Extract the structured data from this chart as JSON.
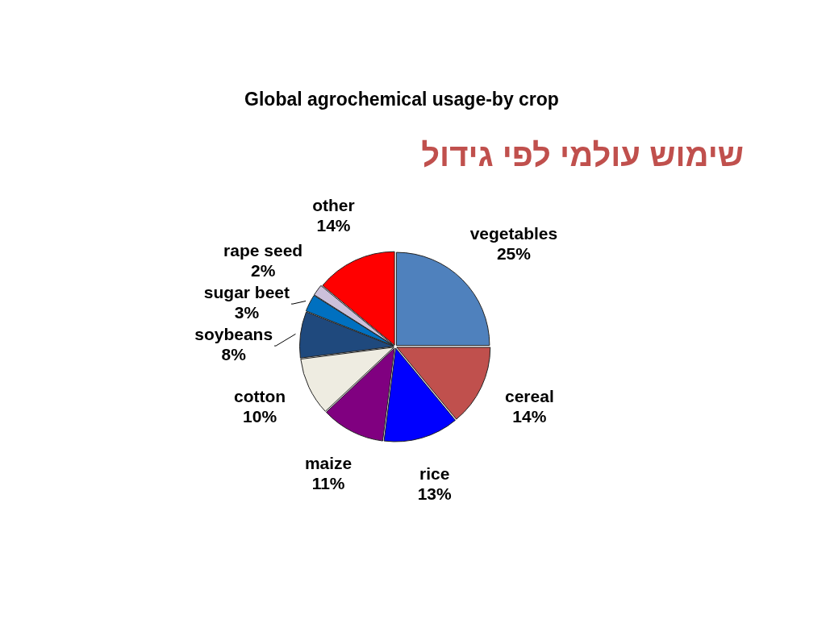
{
  "chart_data": {
    "type": "pie",
    "title": "Global agrochemical usage-by crop",
    "subtitle": "שימוש עולמי לפי גידול",
    "categories": [
      "vegetables",
      "cereal",
      "rice",
      "maize",
      "cotton",
      "soybeans",
      "sugar beet",
      "rape seed",
      "other"
    ],
    "values": [
      25,
      14,
      13,
      11,
      10,
      8,
      3,
      2,
      14
    ],
    "colors": [
      "#4f81bd",
      "#c0504d",
      "#0000ff",
      "#800080",
      "#eeece1",
      "#1f497d",
      "#0070c0",
      "#ccc0da",
      "#ff0000"
    ],
    "value_labels": [
      "25%",
      "14%",
      "13%",
      "11%",
      "10%",
      "8%",
      "3%",
      "2%",
      "14%"
    ],
    "legend": false
  }
}
